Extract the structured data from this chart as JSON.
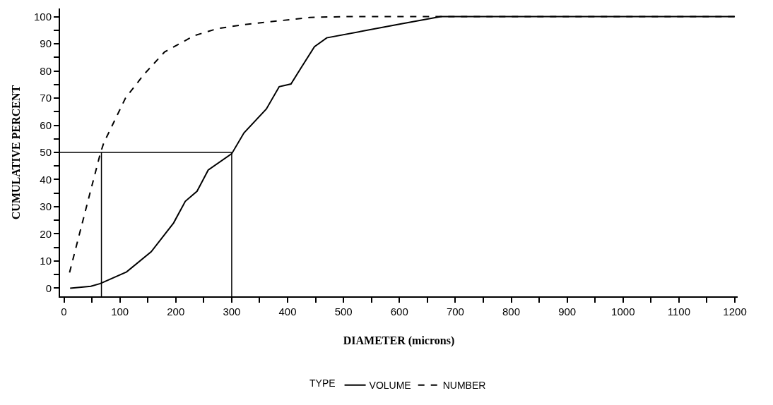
{
  "chart_data": {
    "type": "line",
    "xlabel": "DIAMETER (microns)",
    "ylabel": "CUMULATIVE PERCENT",
    "legend_title": "TYPE",
    "legend": "bottom",
    "xlim": [
      -7,
      1205
    ],
    "ylim": [
      -3,
      103
    ],
    "xticks": [
      0,
      {
        "value": 50,
        "label": null
      },
      100,
      {
        "value": 150,
        "label": null
      },
      200,
      {
        "value": 250,
        "label": null
      },
      300,
      {
        "value": 350,
        "label": null
      },
      400,
      {
        "value": 450,
        "label": null
      },
      500,
      {
        "value": 550,
        "label": null
      },
      600,
      {
        "value": 650,
        "label": null
      },
      700,
      {
        "value": 750,
        "label": null
      },
      800,
      {
        "value": 850,
        "label": null
      },
      900,
      {
        "value": 950,
        "label": null
      },
      1000,
      {
        "value": 1050,
        "label": null
      },
      1100,
      {
        "value": 1150,
        "label": null
      },
      1200
    ],
    "yticks": [
      0,
      {
        "value": 5,
        "label": null
      },
      10,
      {
        "value": 15,
        "label": null
      },
      20,
      {
        "value": 25,
        "label": null
      },
      30,
      {
        "value": 35,
        "label": null
      },
      40,
      {
        "value": 45,
        "label": null
      },
      50,
      {
        "value": 55,
        "label": null
      },
      60,
      {
        "value": 65,
        "label": null
      },
      70,
      {
        "value": 75,
        "label": null
      },
      80,
      {
        "value": 85,
        "label": null
      },
      90,
      {
        "value": 95,
        "label": null
      },
      100
    ],
    "series": [
      {
        "name": "VOLUME",
        "color": "#000000",
        "line_style": "solid",
        "x": [
          11,
          48,
          65,
          112,
          156,
          196,
          217,
          238,
          258,
          300,
          322,
          362,
          385,
          406,
          423,
          448,
          470,
          600,
          674,
          1200
        ],
        "values": [
          0,
          0.7,
          1.7,
          6,
          13.4,
          24,
          32,
          35.7,
          43.5,
          49.5,
          57.2,
          66,
          74.2,
          75.2,
          80.8,
          88.9,
          92.2,
          97.2,
          100,
          100
        ]
      },
      {
        "name": "NUMBER",
        "color": "#000000",
        "line_style": "dashed",
        "x": [
          10,
          44,
          65,
          71,
          110,
          143,
          180,
          233,
          275,
          320,
          440,
          500,
          1200
        ],
        "values": [
          5.8,
          33,
          49.6,
          53.4,
          70,
          78.7,
          87,
          93,
          95.6,
          97,
          99.7,
          100,
          100
        ]
      }
    ],
    "ref_lines": [
      {
        "axis": "y",
        "value": 50,
        "color": "#000000"
      },
      {
        "axis": "x",
        "value": 67,
        "color": "#000000"
      },
      {
        "axis": "x",
        "value": 300,
        "color": "#000000"
      }
    ]
  }
}
